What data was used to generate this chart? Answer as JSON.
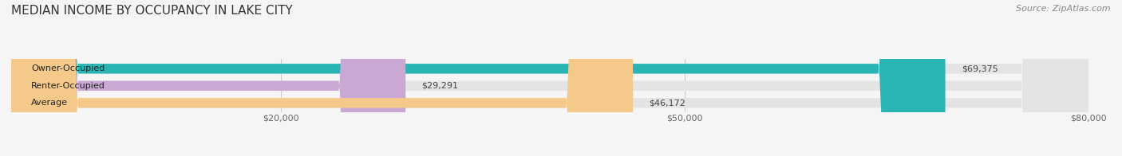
{
  "title": "MEDIAN INCOME BY OCCUPANCY IN LAKE CITY",
  "source": "Source: ZipAtlas.com",
  "categories": [
    "Owner-Occupied",
    "Renter-Occupied",
    "Average"
  ],
  "values": [
    69375,
    29291,
    46172
  ],
  "bar_colors": [
    "#2ab5b5",
    "#c9a8d4",
    "#f5c98a"
  ],
  "label_texts": [
    "$69,375",
    "$29,291",
    "$46,172"
  ],
  "xlim": [
    0,
    80000
  ],
  "xticks": [
    20000,
    50000,
    80000
  ],
  "xtick_labels": [
    "$20,000",
    "$50,000",
    "$80,000"
  ],
  "background_color": "#f5f5f5",
  "bar_bg_color": "#e4e4e4",
  "title_fontsize": 11,
  "bar_height": 0.58,
  "figsize": [
    14.06,
    1.96
  ],
  "dpi": 100
}
